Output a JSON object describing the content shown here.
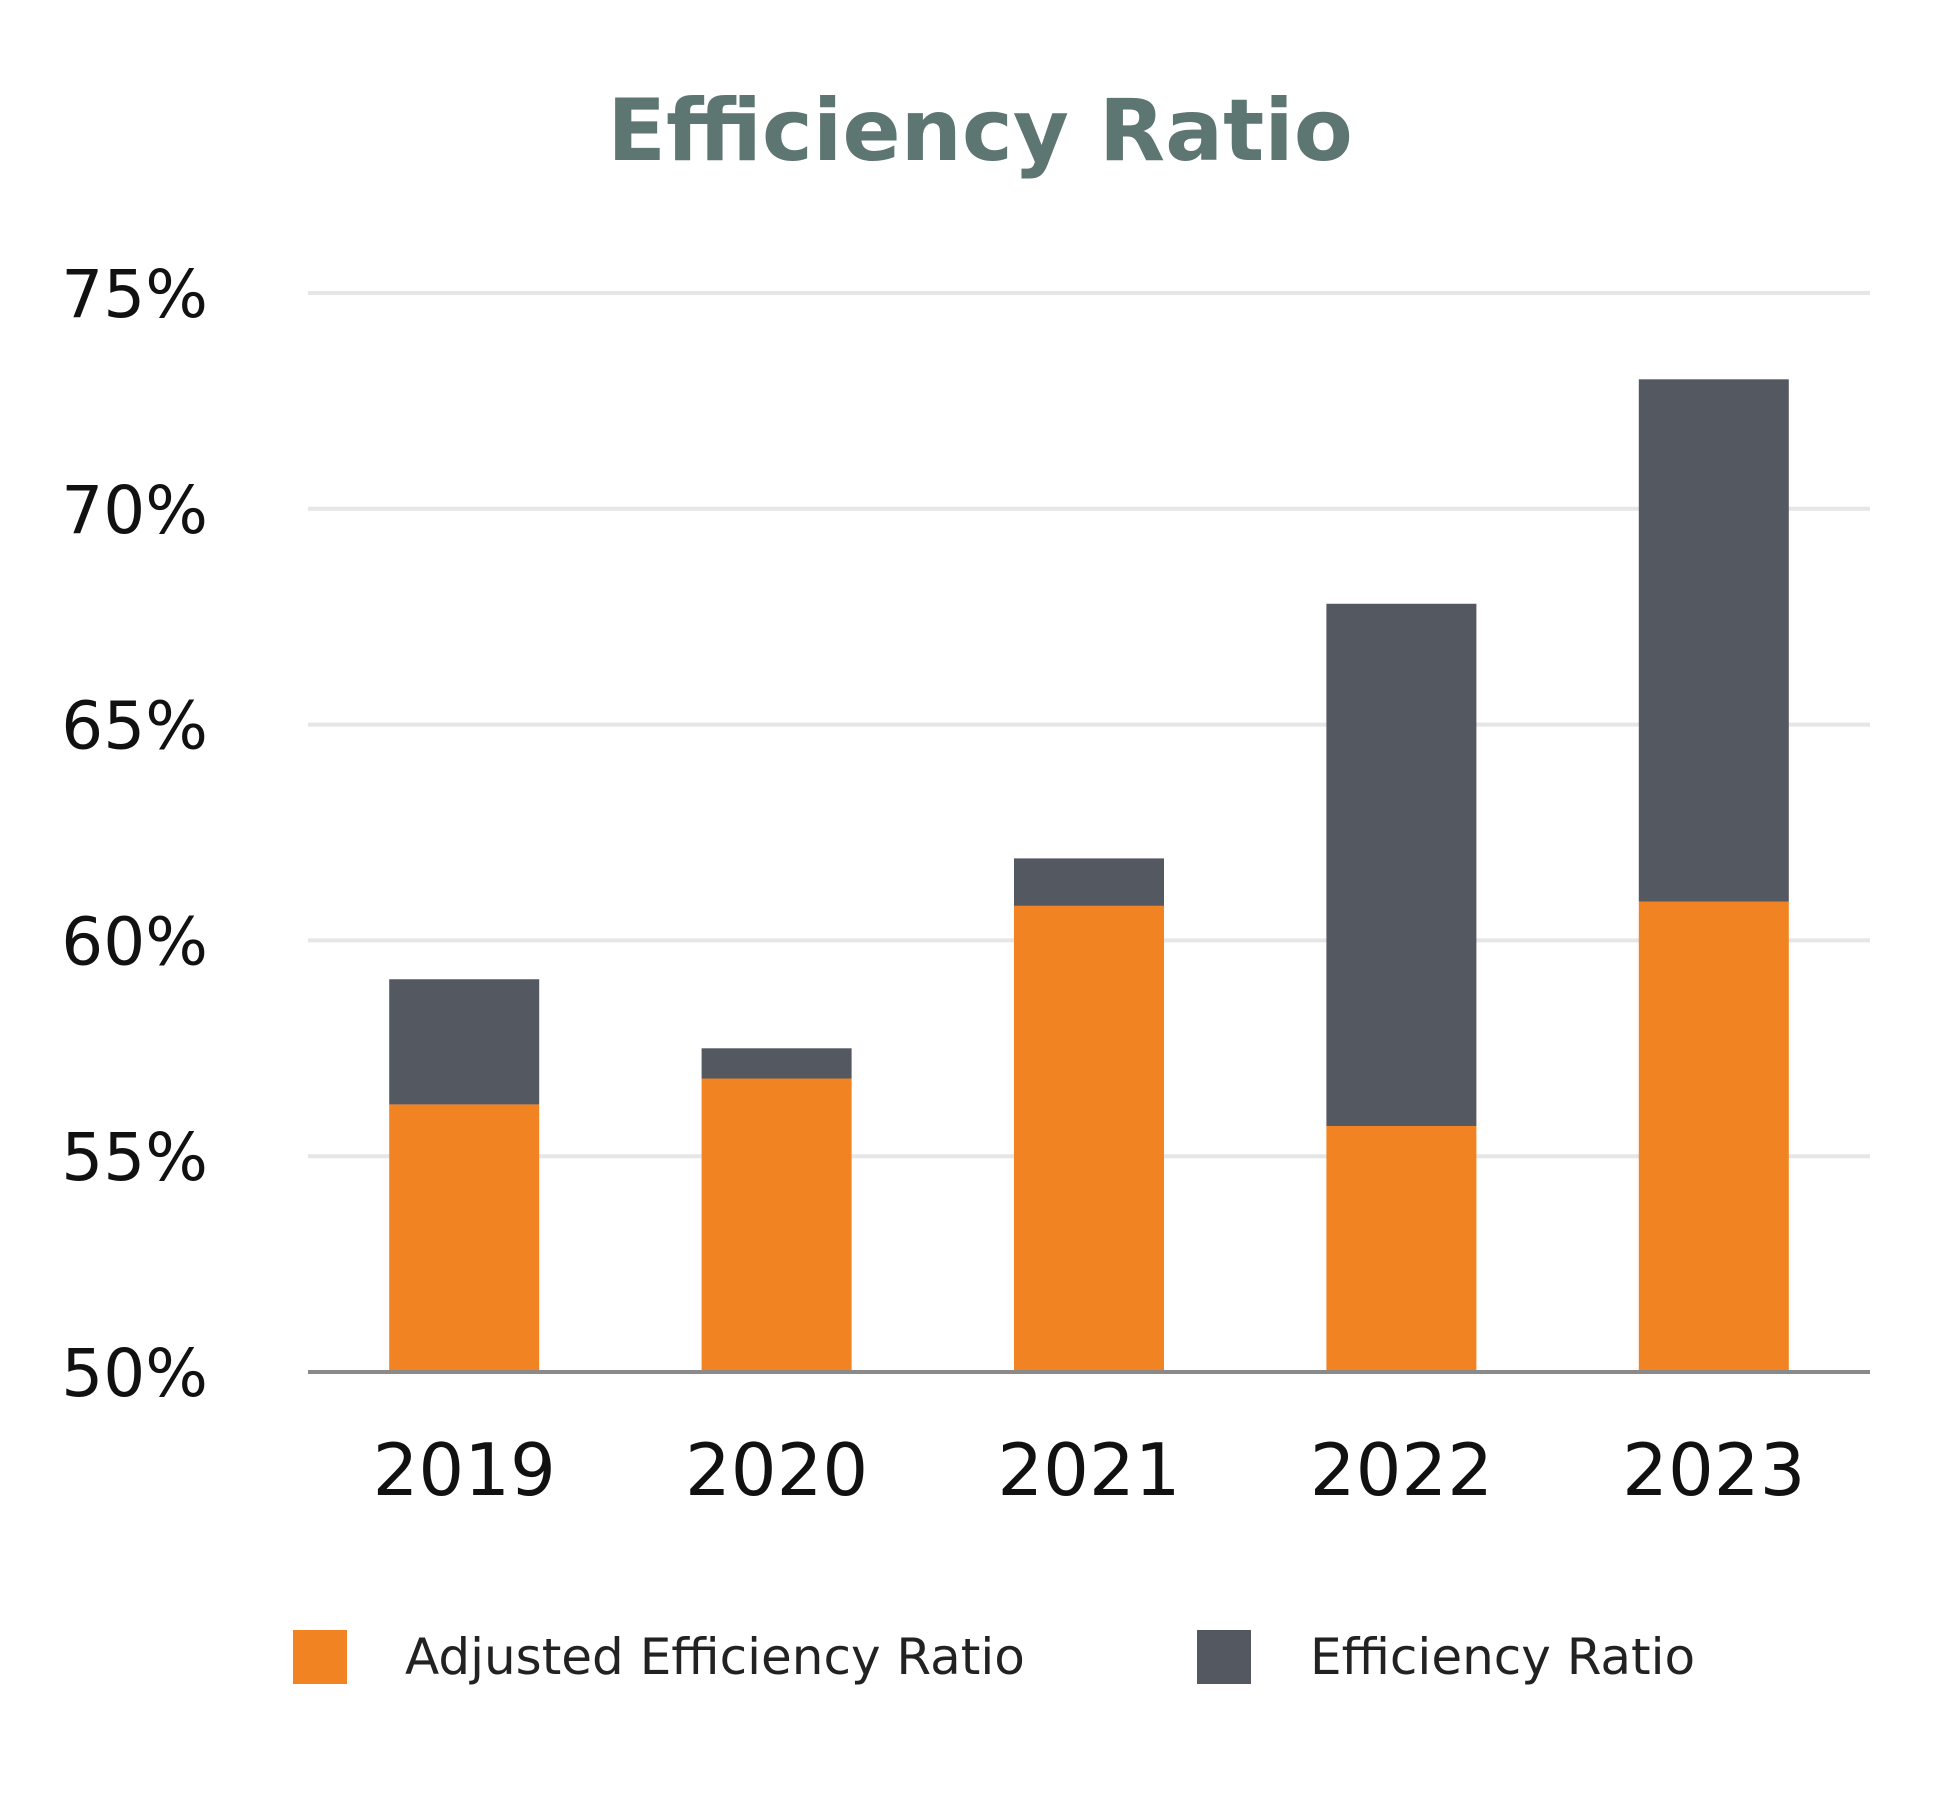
{
  "chart_data": {
    "type": "bar",
    "stacked": true,
    "title": "Efficiency Ratio",
    "xlabel": "",
    "ylabel": "",
    "categories": [
      "2019",
      "2020",
      "2021",
      "2022",
      "2023"
    ],
    "series": [
      {
        "name": "Adjusted Efficiency Ratio",
        "color": "#f28322",
        "values": [
          56.2,
          56.8,
          60.8,
          55.7,
          60.9
        ]
      },
      {
        "name": "Efficiency Ratio",
        "color": "#545861",
        "total_values": [
          59.1,
          57.5,
          61.9,
          67.8,
          73.0
        ]
      }
    ],
    "ylim": [
      50,
      75
    ],
    "yticks": [
      50,
      55,
      60,
      65,
      70,
      75
    ],
    "ytick_labels": [
      "50%",
      "55%",
      "60%",
      "65%",
      "70%",
      "75%"
    ],
    "grid": true,
    "legend_position": "bottom"
  }
}
